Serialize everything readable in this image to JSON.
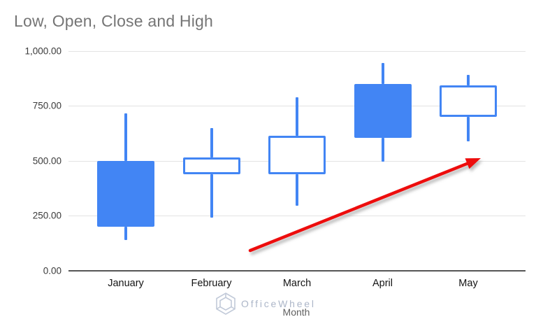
{
  "chart_data": {
    "type": "candlestick",
    "title": "Low, Open, Close and High",
    "xlabel": "Month",
    "categories": [
      "January",
      "February",
      "March",
      "April",
      "May"
    ],
    "y_axis": {
      "ticks": [
        "1,000.00",
        "750.00",
        "500.00",
        "250.00",
        "0.00"
      ],
      "min": 0,
      "max": 1000
    },
    "grid": "horizontal gridlines every 250",
    "legend": "none",
    "candles": [
      {
        "month": "January",
        "low": 140,
        "open": 500,
        "close": 200,
        "high": 715,
        "body": "filled",
        "trend": "falling"
      },
      {
        "month": "February",
        "low": 240,
        "open": 440,
        "close": 515,
        "high": 650,
        "body": "hollow",
        "trend": "rising"
      },
      {
        "month": "March",
        "low": 295,
        "open": 440,
        "close": 615,
        "high": 790,
        "body": "hollow",
        "trend": "rising"
      },
      {
        "month": "April",
        "low": 495,
        "open": 850,
        "close": 605,
        "high": 945,
        "body": "filled",
        "trend": "falling"
      },
      {
        "month": "May",
        "low": 590,
        "open": 700,
        "close": 845,
        "high": 890,
        "body": "hollow",
        "trend": "rising"
      }
    ],
    "colors": {
      "candle_blue": "#4285F4",
      "gridline": "#e3e3e3",
      "axis_line": "#555555",
      "title_gray": "#757575",
      "arrow_red": "#ED1111"
    },
    "annotation": {
      "type": "arrow",
      "color": "#ED1111",
      "description": "red trend arrow pointing up-right, tip near May at value ~510"
    }
  },
  "watermark": {
    "text": "OfficeWheel",
    "icon": "hexagon-logo"
  }
}
